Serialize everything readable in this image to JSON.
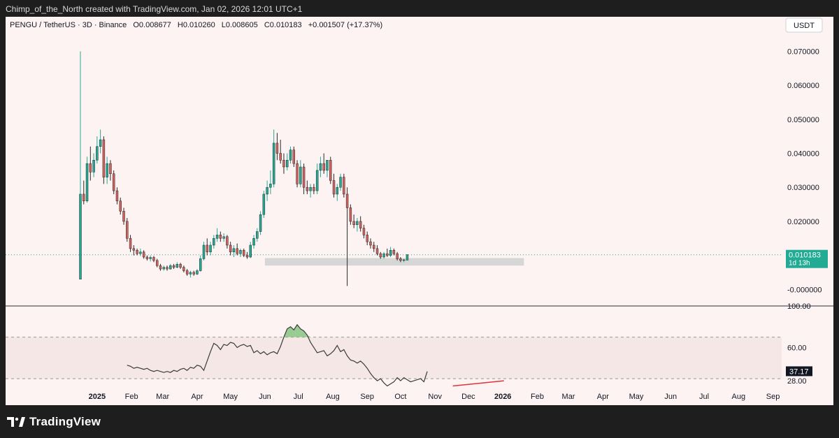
{
  "attribution": "Chimp_of_the_North created with TradingView.com, Jan 02, 2026 12:01 UTC+1",
  "header": {
    "symbol": "PENGU / TetherUS · 3D · Binance",
    "open": "O0.008677",
    "high": "H0.010260",
    "low": "L0.008605",
    "close": "C0.010183",
    "change": "+0.001507 (+17.37%)"
  },
  "currency_button": "USDT",
  "price_badge": {
    "price": "0.010183",
    "countdown": "1d 13h"
  },
  "rsi_badge": "37.17",
  "brand": "TradingView",
  "colors": {
    "up": "#22ab94",
    "down": "#f23645",
    "down_fill": "#d2625e",
    "rsi_line": "#3b3b3b",
    "divergence": "#e0323c",
    "overbought_fill": "#7ec27a",
    "support_box": "#d6d6d6",
    "last_price_line": "#22ab94",
    "background": "#fdf3f3"
  },
  "chart_data": [
    {
      "type": "candlestick",
      "title": "PENGU / TetherUS · 3D · Binance",
      "ylabel": "",
      "ylim": [
        -0.002,
        0.074
      ],
      "y_ticks": [
        "0.070000",
        "0.060000",
        "0.050000",
        "0.040000",
        "0.030000",
        "0.020000",
        "-0.000000"
      ],
      "x_ticks": [
        "2025",
        "Feb",
        "Mar",
        "Apr",
        "May",
        "Jun",
        "Jul",
        "Aug",
        "Sep",
        "Oct",
        "Nov",
        "Dec",
        "2026",
        "Feb",
        "Mar",
        "Apr",
        "May",
        "Jun",
        "Jul",
        "Aug",
        "Sep"
      ],
      "time_start": "2024-12-17",
      "interval_days": 3,
      "ohlc": [
        [
          0.003,
          0.07,
          0.003,
          0.028
        ],
        [
          0.028,
          0.032,
          0.025,
          0.026
        ],
        [
          0.026,
          0.039,
          0.0255,
          0.037
        ],
        [
          0.037,
          0.042,
          0.032,
          0.0345
        ],
        [
          0.0345,
          0.04,
          0.033,
          0.038
        ],
        [
          0.038,
          0.045,
          0.037,
          0.042
        ],
        [
          0.042,
          0.047,
          0.04,
          0.044
        ],
        [
          0.044,
          0.045,
          0.031,
          0.033
        ],
        [
          0.033,
          0.039,
          0.031,
          0.037
        ],
        [
          0.037,
          0.038,
          0.032,
          0.034
        ],
        [
          0.034,
          0.035,
          0.028,
          0.029
        ],
        [
          0.029,
          0.03,
          0.025,
          0.026
        ],
        [
          0.026,
          0.027,
          0.022,
          0.023
        ],
        [
          0.023,
          0.024,
          0.019,
          0.02
        ],
        [
          0.02,
          0.021,
          0.014,
          0.015
        ],
        [
          0.015,
          0.016,
          0.011,
          0.012
        ],
        [
          0.012,
          0.013,
          0.01,
          0.0115
        ],
        [
          0.0115,
          0.012,
          0.01,
          0.0105
        ],
        [
          0.0105,
          0.012,
          0.0098,
          0.011
        ],
        [
          0.011,
          0.0115,
          0.009,
          0.0095
        ],
        [
          0.0095,
          0.01,
          0.0085,
          0.009
        ],
        [
          0.009,
          0.01,
          0.0082,
          0.0094
        ],
        [
          0.0094,
          0.0098,
          0.008,
          0.0085
        ],
        [
          0.0085,
          0.009,
          0.0065,
          0.007
        ],
        [
          0.007,
          0.0075,
          0.0055,
          0.006
        ],
        [
          0.006,
          0.007,
          0.0055,
          0.0065
        ],
        [
          0.0065,
          0.007,
          0.0055,
          0.006
        ],
        [
          0.006,
          0.0075,
          0.0058,
          0.007
        ],
        [
          0.007,
          0.0075,
          0.006,
          0.0065
        ],
        [
          0.0065,
          0.008,
          0.0062,
          0.0074
        ],
        [
          0.0074,
          0.0078,
          0.006,
          0.0065
        ],
        [
          0.0065,
          0.007,
          0.005,
          0.0055
        ],
        [
          0.0055,
          0.006,
          0.004,
          0.0045
        ],
        [
          0.0045,
          0.0055,
          0.0035,
          0.005
        ],
        [
          0.005,
          0.0055,
          0.004,
          0.0045
        ],
        [
          0.0045,
          0.006,
          0.0042,
          0.0055
        ],
        [
          0.0055,
          0.01,
          0.0052,
          0.009
        ],
        [
          0.009,
          0.014,
          0.0085,
          0.013
        ],
        [
          0.013,
          0.015,
          0.01,
          0.011
        ],
        [
          0.011,
          0.014,
          0.01,
          0.013
        ],
        [
          0.013,
          0.016,
          0.012,
          0.015
        ],
        [
          0.015,
          0.018,
          0.014,
          0.016
        ],
        [
          0.016,
          0.017,
          0.014,
          0.015
        ],
        [
          0.015,
          0.0165,
          0.014,
          0.0155
        ],
        [
          0.0155,
          0.016,
          0.012,
          0.013
        ],
        [
          0.013,
          0.014,
          0.01,
          0.011
        ],
        [
          0.011,
          0.013,
          0.0095,
          0.012
        ],
        [
          0.012,
          0.0135,
          0.01,
          0.0105
        ],
        [
          0.0105,
          0.012,
          0.0095,
          0.0115
        ],
        [
          0.0115,
          0.012,
          0.0095,
          0.01
        ],
        [
          0.01,
          0.011,
          0.009,
          0.0095
        ],
        [
          0.0095,
          0.014,
          0.0092,
          0.013
        ],
        [
          0.013,
          0.016,
          0.012,
          0.015
        ],
        [
          0.015,
          0.018,
          0.014,
          0.017
        ],
        [
          0.017,
          0.023,
          0.016,
          0.022
        ],
        [
          0.022,
          0.029,
          0.021,
          0.028
        ],
        [
          0.028,
          0.032,
          0.026,
          0.03
        ],
        [
          0.03,
          0.035,
          0.028,
          0.031
        ],
        [
          0.031,
          0.047,
          0.03,
          0.043
        ],
        [
          0.043,
          0.046,
          0.038,
          0.04
        ],
        [
          0.04,
          0.044,
          0.037,
          0.038
        ],
        [
          0.038,
          0.04,
          0.034,
          0.036
        ],
        [
          0.036,
          0.04,
          0.035,
          0.038
        ],
        [
          0.038,
          0.042,
          0.037,
          0.041
        ],
        [
          0.041,
          0.042,
          0.036,
          0.037
        ],
        [
          0.037,
          0.038,
          0.03,
          0.031
        ],
        [
          0.031,
          0.038,
          0.03,
          0.036
        ],
        [
          0.036,
          0.037,
          0.028,
          0.03
        ],
        [
          0.03,
          0.032,
          0.028,
          0.029
        ],
        [
          0.029,
          0.031,
          0.027,
          0.03
        ],
        [
          0.03,
          0.031,
          0.028,
          0.029
        ],
        [
          0.029,
          0.037,
          0.028,
          0.035
        ],
        [
          0.035,
          0.039,
          0.033,
          0.037
        ],
        [
          0.037,
          0.04,
          0.034,
          0.035
        ],
        [
          0.035,
          0.038,
          0.033,
          0.038
        ],
        [
          0.038,
          0.039,
          0.031,
          0.032
        ],
        [
          0.032,
          0.034,
          0.027,
          0.028
        ],
        [
          0.028,
          0.031,
          0.026,
          0.03
        ],
        [
          0.03,
          0.034,
          0.029,
          0.033
        ],
        [
          0.033,
          0.034,
          0.027,
          0.028
        ],
        [
          0.028,
          0.03,
          0.001,
          0.024
        ],
        [
          0.024,
          0.025,
          0.019,
          0.02
        ],
        [
          0.02,
          0.022,
          0.018,
          0.019
        ],
        [
          0.019,
          0.021,
          0.017,
          0.02
        ],
        [
          0.02,
          0.0215,
          0.017,
          0.018
        ],
        [
          0.018,
          0.019,
          0.015,
          0.016
        ],
        [
          0.016,
          0.017,
          0.013,
          0.014
        ],
        [
          0.014,
          0.015,
          0.012,
          0.013
        ],
        [
          0.013,
          0.014,
          0.011,
          0.012
        ],
        [
          0.012,
          0.013,
          0.01,
          0.0105
        ],
        [
          0.0105,
          0.011,
          0.009,
          0.0095
        ],
        [
          0.0095,
          0.011,
          0.009,
          0.0105
        ],
        [
          0.0105,
          0.012,
          0.0095,
          0.01
        ],
        [
          0.01,
          0.0125,
          0.0095,
          0.0115
        ],
        [
          0.0115,
          0.012,
          0.01,
          0.0105
        ],
        [
          0.0105,
          0.011,
          0.0085,
          0.009
        ],
        [
          0.009,
          0.0095,
          0.008,
          0.0085
        ],
        [
          0.0085,
          0.009,
          0.008,
          0.0087
        ],
        [
          0.0086,
          0.0103,
          0.0086,
          0.0102
        ]
      ],
      "support_zone": {
        "x_start": "2025-06-01",
        "x_end": "2026-01-20",
        "y_range": [
          0.007,
          0.0092
        ]
      },
      "last_price": 0.010183
    },
    {
      "type": "line",
      "title": "",
      "ylim": [
        22,
        100
      ],
      "y_ticks": [
        "100.00",
        "60.00",
        "28.00"
      ],
      "bands": [
        70,
        30
      ],
      "overbought_level": 70,
      "series": [
        {
          "values": [
            43,
            42,
            40,
            41,
            40,
            39,
            40,
            38,
            37,
            38,
            37,
            36,
            37,
            36,
            38,
            37,
            39,
            40,
            38,
            41,
            40,
            43,
            42,
            38,
            47,
            56,
            64,
            62,
            58,
            63,
            62,
            65,
            64,
            60,
            62,
            63,
            61,
            62,
            55,
            57,
            54,
            56,
            53,
            55,
            56,
            54,
            61,
            70,
            78,
            80,
            77,
            82,
            78,
            76,
            72,
            65,
            60,
            55,
            56,
            57,
            52,
            54,
            57,
            62,
            56,
            58,
            52,
            48,
            47,
            45,
            47,
            44,
            40,
            35,
            31,
            28,
            30,
            26,
            23,
            25,
            27,
            31,
            28,
            31,
            29,
            27,
            28,
            29,
            30,
            27,
            37
          ]
        }
      ],
      "rsi_start": "2025-01-28",
      "divergence_line": {
        "x": [
          "2025-11-17",
          "2026-01-02"
        ],
        "y": [
          23,
          28
        ]
      },
      "last_value": 37.17
    }
  ]
}
